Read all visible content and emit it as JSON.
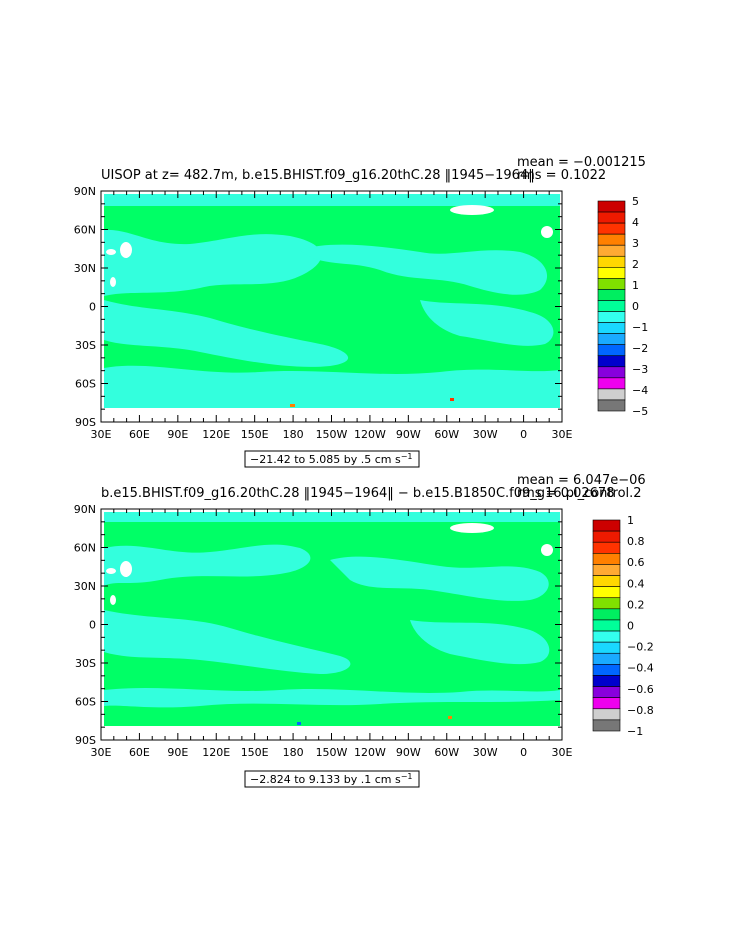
{
  "chart_data": [
    {
      "type": "heatmap",
      "title": "UISOP at z= 482.7m, b.e15.BHIST.f09_g16.20thC.28 ‖1945−1964‖",
      "stats": {
        "mean": "mean = −0.001215",
        "rms": "rms = 0.1022"
      },
      "range_label": "−21.42 to 5.085 by .5 cm s",
      "range_unit_sup": "−1",
      "x_ticks": [
        "30E",
        "60E",
        "90E",
        "120E",
        "150E",
        "180",
        "150W",
        "120W",
        "90W",
        "60W",
        "30W",
        "0",
        "30E"
      ],
      "y_ticks": [
        "90N",
        "60N",
        "30N",
        "0",
        "30S",
        "60S",
        "90S"
      ],
      "colorbar": {
        "labels": [
          "5",
          "4",
          "3",
          "2",
          "1",
          "0",
          "−1",
          "−2",
          "−3",
          "−4",
          "−5"
        ],
        "colors": [
          "#cc0000",
          "#ee1a00",
          "#ff3300",
          "#ff8000",
          "#ffaa33",
          "#ffd700",
          "#ffff00",
          "#80e000",
          "#00ee60",
          "#00ff99",
          "#33ffee",
          "#1ad8ff",
          "#1aaaff",
          "#0066ff",
          "#0000cc",
          "#8800dd",
          "#ee00ee",
          "#cfcfcf",
          "#777777"
        ]
      },
      "ocean_fill": "#00ff66",
      "anomaly_fill": "#33ffdd"
    },
    {
      "type": "heatmap",
      "title": "b.e15.BHIST.f09_g16.20thC.28 ‖1945−1964‖ − b.e15.B1850C.f09_g16.pi_control.2",
      "stats": {
        "mean": "mean = 6.047e−06",
        "rms": "rms = 0.02678"
      },
      "range_label": "−2.824 to 9.133 by .1 cm s",
      "range_unit_sup": "−1",
      "x_ticks": [
        "30E",
        "60E",
        "90E",
        "120E",
        "150E",
        "180",
        "150W",
        "120W",
        "90W",
        "60W",
        "30W",
        "0",
        "30E"
      ],
      "y_ticks": [
        "90N",
        "60N",
        "30N",
        "0",
        "30S",
        "60S",
        "90S"
      ],
      "colorbar": {
        "labels": [
          "1",
          "0.8",
          "0.6",
          "0.4",
          "0.2",
          "0",
          "−0.2",
          "−0.4",
          "−0.6",
          "−0.8",
          "−1"
        ],
        "colors": [
          "#cc0000",
          "#ee1a00",
          "#ff3300",
          "#ff8000",
          "#ffaa33",
          "#ffd700",
          "#ffff00",
          "#80e000",
          "#00ee60",
          "#00ff99",
          "#33ffee",
          "#1ad8ff",
          "#1aaaff",
          "#0066ff",
          "#0000cc",
          "#8800dd",
          "#ee00ee",
          "#cfcfcf",
          "#777777"
        ]
      },
      "ocean_fill": "#00ff66",
      "anomaly_fill": "#33ffdd"
    }
  ]
}
